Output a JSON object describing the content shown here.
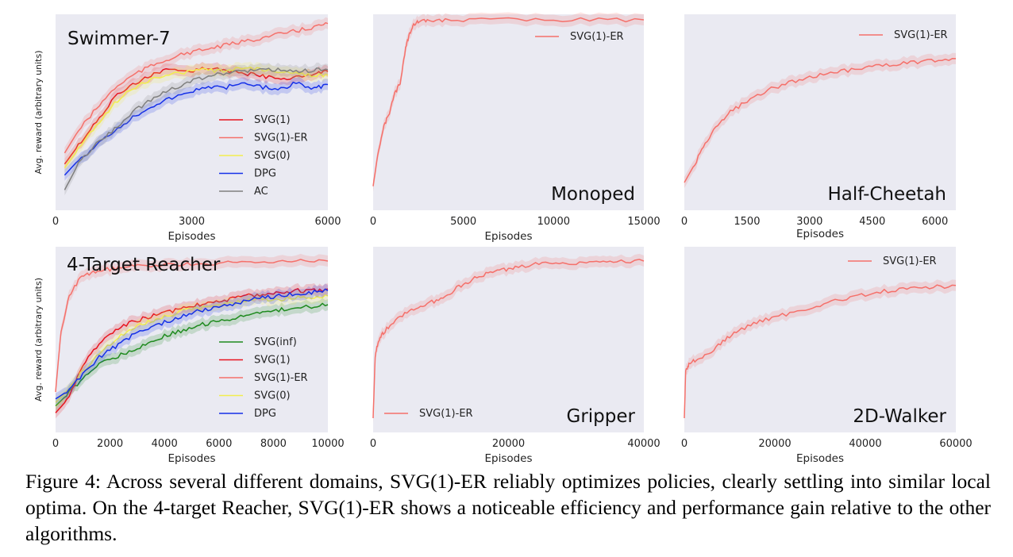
{
  "caption": "Figure 4: Across several different domains, SVG(1)-ER reliably optimizes policies, clearly settling into similar local optima. On the 4-target Reacher, SVG(1)-ER shows a noticeable efficiency and performance gain relative to the other algorithms.",
  "colors": {
    "panel_bg": "#EAEAF2",
    "SVG(1)": "#E8141E",
    "SVG(1)-ER": "#F5706A",
    "SVG(0)": "#F2EE4E",
    "DPG": "#1530E8",
    "AC": "#7F7F7F",
    "SVG(inf)": "#1E8A1E"
  },
  "chart_data": [
    {
      "type": "line",
      "title": "Swimmer-7",
      "xlabel": "Episodes",
      "ylabel": "Avg. reward (arbitrary units)",
      "xlim": [
        0,
        6000
      ],
      "xticks": [
        "0",
        "3000",
        "6000"
      ],
      "ylim": [
        0,
        1
      ],
      "legend_position": "center-right",
      "series": [
        {
          "name": "SVG(1)",
          "x": [
            200,
            500,
            900,
            1300,
            1700,
            2100,
            2500,
            2900,
            3300,
            3700,
            4100,
            4500,
            4900,
            5300,
            5700,
            6000
          ],
          "y": [
            0.22,
            0.32,
            0.45,
            0.58,
            0.65,
            0.7,
            0.73,
            0.72,
            0.74,
            0.73,
            0.71,
            0.7,
            0.68,
            0.69,
            0.71,
            0.72
          ]
        },
        {
          "name": "SVG(1)-ER",
          "x": [
            200,
            500,
            900,
            1300,
            1700,
            2100,
            2500,
            2900,
            3300,
            3700,
            4100,
            4500,
            4900,
            5300,
            5700,
            6000
          ],
          "y": [
            0.28,
            0.4,
            0.52,
            0.63,
            0.7,
            0.75,
            0.79,
            0.82,
            0.84,
            0.86,
            0.88,
            0.9,
            0.92,
            0.94,
            0.96,
            0.98
          ]
        },
        {
          "name": "SVG(0)",
          "x": [
            200,
            500,
            900,
            1300,
            1700,
            2100,
            2500,
            2900,
            3300,
            3700,
            4100,
            4500,
            4900,
            5300,
            5700,
            6000
          ],
          "y": [
            0.2,
            0.3,
            0.43,
            0.55,
            0.63,
            0.68,
            0.7,
            0.72,
            0.73,
            0.72,
            0.74,
            0.73,
            0.72,
            0.71,
            0.7,
            0.7
          ]
        },
        {
          "name": "DPG",
          "x": [
            200,
            500,
            900,
            1300,
            1700,
            2100,
            2500,
            2900,
            3300,
            3700,
            4100,
            4500,
            4900,
            5300,
            5700,
            6000
          ],
          "y": [
            0.16,
            0.24,
            0.32,
            0.4,
            0.47,
            0.53,
            0.57,
            0.6,
            0.64,
            0.63,
            0.66,
            0.64,
            0.62,
            0.66,
            0.63,
            0.65
          ]
        },
        {
          "name": "AC",
          "x": [
            200,
            500,
            900,
            1300,
            1700,
            2100,
            2500,
            2900,
            3300,
            3700,
            4100,
            4500,
            4900,
            5300,
            5700,
            6000
          ],
          "y": [
            0.08,
            0.22,
            0.33,
            0.41,
            0.5,
            0.57,
            0.62,
            0.66,
            0.69,
            0.71,
            0.72,
            0.73,
            0.73,
            0.72,
            0.73,
            0.73
          ]
        }
      ]
    },
    {
      "type": "line",
      "title": "Monoped",
      "xlabel": "Episodes",
      "ylabel": "",
      "xlim": [
        0,
        15000
      ],
      "xticks": [
        "0",
        "5000",
        "10000",
        "15000"
      ],
      "ylim": [
        0,
        1
      ],
      "legend_position": "top-right",
      "series": [
        {
          "name": "SVG(1)-ER",
          "x": [
            0,
            300,
            600,
            900,
            1200,
            1500,
            1800,
            2000,
            2200,
            2500,
            3000,
            4000,
            6000,
            9000,
            12000,
            15000
          ],
          "y": [
            0.1,
            0.3,
            0.42,
            0.5,
            0.6,
            0.66,
            0.85,
            0.92,
            0.97,
            0.99,
            0.995,
            1.0,
            1.0,
            1.0,
            1.0,
            1.0
          ]
        }
      ]
    },
    {
      "type": "line",
      "title": "Half-Cheetah",
      "xlabel": "Episodes",
      "ylabel": "",
      "xlim": [
        0,
        6500
      ],
      "xticks": [
        "0",
        "1500",
        "3000",
        "4500",
        "6000"
      ],
      "ylim": [
        0,
        1
      ],
      "legend_position": "top-right",
      "series": [
        {
          "name": "SVG(1)-ER",
          "x": [
            0,
            250,
            500,
            800,
            1100,
            1500,
            2000,
            2500,
            3000,
            3500,
            4000,
            4500,
            5000,
            5500,
            6000,
            6500
          ],
          "y": [
            0.12,
            0.22,
            0.33,
            0.43,
            0.5,
            0.56,
            0.62,
            0.66,
            0.69,
            0.71,
            0.73,
            0.75,
            0.76,
            0.77,
            0.78,
            0.79
          ]
        }
      ]
    },
    {
      "type": "line",
      "title": "4-Target Reacher",
      "xlabel": "Episodes",
      "ylabel": "Avg. reward (arbitrary units)",
      "xlim": [
        0,
        10000
      ],
      "xticks": [
        "0",
        "2000",
        "4000",
        "6000",
        "8000",
        "10000"
      ],
      "ylim": [
        0,
        1
      ],
      "legend_position": "center-right",
      "series": [
        {
          "name": "SVG(inf)",
          "x": [
            0,
            400,
            1000,
            1600,
            2200,
            2800,
            3400,
            4000,
            4600,
            5200,
            5800,
            6400,
            7000,
            7600,
            8200,
            8800,
            9400,
            10000
          ],
          "y": [
            0.12,
            0.18,
            0.28,
            0.36,
            0.4,
            0.44,
            0.48,
            0.52,
            0.55,
            0.58,
            0.6,
            0.62,
            0.64,
            0.65,
            0.67,
            0.68,
            0.69,
            0.7
          ]
        },
        {
          "name": "SVG(1)",
          "x": [
            0,
            400,
            1000,
            1600,
            2200,
            2800,
            3400,
            4000,
            4600,
            5200,
            5800,
            6400,
            7000,
            7600,
            8200,
            8800,
            9400,
            10000
          ],
          "y": [
            0.08,
            0.15,
            0.35,
            0.48,
            0.55,
            0.6,
            0.63,
            0.65,
            0.68,
            0.7,
            0.72,
            0.73,
            0.75,
            0.76,
            0.77,
            0.78,
            0.78,
            0.79
          ]
        },
        {
          "name": "SVG(1)-ER",
          "x": [
            0,
            200,
            500,
            900,
            1300,
            1800,
            2400,
            3000,
            4000,
            5000,
            6000,
            7000,
            8000,
            9000,
            10000
          ],
          "y": [
            0.2,
            0.55,
            0.75,
            0.85,
            0.88,
            0.9,
            0.91,
            0.92,
            0.93,
            0.93,
            0.94,
            0.94,
            0.95,
            0.95,
            0.95
          ]
        },
        {
          "name": "SVG(0)",
          "x": [
            0,
            400,
            1000,
            1600,
            2200,
            2800,
            3400,
            4000,
            4600,
            5200,
            5800,
            6400,
            7000,
            7600,
            8200,
            8800,
            9400,
            10000
          ],
          "y": [
            0.14,
            0.2,
            0.32,
            0.42,
            0.5,
            0.56,
            0.6,
            0.63,
            0.66,
            0.68,
            0.69,
            0.71,
            0.72,
            0.73,
            0.73,
            0.74,
            0.74,
            0.75
          ]
        },
        {
          "name": "DPG",
          "x": [
            0,
            400,
            1000,
            1600,
            2200,
            2800,
            3400,
            4000,
            4600,
            5200,
            5800,
            6400,
            7000,
            7600,
            8200,
            8800,
            9400,
            10000
          ],
          "y": [
            0.16,
            0.2,
            0.3,
            0.4,
            0.46,
            0.52,
            0.56,
            0.6,
            0.63,
            0.66,
            0.68,
            0.7,
            0.72,
            0.74,
            0.75,
            0.76,
            0.77,
            0.78
          ]
        }
      ]
    },
    {
      "type": "line",
      "title": "Gripper",
      "xlabel": "Episodes",
      "ylabel": "",
      "xlim": [
        0,
        40000
      ],
      "xticks": [
        "0",
        "20000",
        "40000"
      ],
      "ylim": [
        0,
        1
      ],
      "legend_position": "bottom-left",
      "series": [
        {
          "name": "SVG(1)-ER",
          "x": [
            0,
            300,
            800,
            1500,
            3000,
            5000,
            7000,
            9000,
            11000,
            13000,
            15000,
            17000,
            19000,
            21000,
            24000,
            27000,
            30000,
            33000,
            36000,
            40000
          ],
          "y": [
            0.05,
            0.4,
            0.5,
            0.54,
            0.6,
            0.66,
            0.69,
            0.72,
            0.76,
            0.81,
            0.85,
            0.88,
            0.9,
            0.91,
            0.93,
            0.94,
            0.94,
            0.95,
            0.95,
            0.95
          ]
        }
      ]
    },
    {
      "type": "line",
      "title": "2D-Walker",
      "xlabel": "Episodes",
      "ylabel": "",
      "xlim": [
        0,
        60000
      ],
      "xticks": [
        "0",
        "20000",
        "40000",
        "60000"
      ],
      "ylim": [
        0,
        1
      ],
      "legend_position": "top-right",
      "series": [
        {
          "name": "SVG(1)-ER",
          "x": [
            0,
            300,
            1000,
            3000,
            6000,
            9000,
            12000,
            16000,
            20000,
            25000,
            30000,
            35000,
            40000,
            45000,
            50000,
            55000,
            60000
          ],
          "y": [
            0.05,
            0.32,
            0.36,
            0.39,
            0.43,
            0.5,
            0.55,
            0.6,
            0.63,
            0.66,
            0.7,
            0.73,
            0.76,
            0.78,
            0.79,
            0.8,
            0.81
          ]
        }
      ]
    }
  ]
}
